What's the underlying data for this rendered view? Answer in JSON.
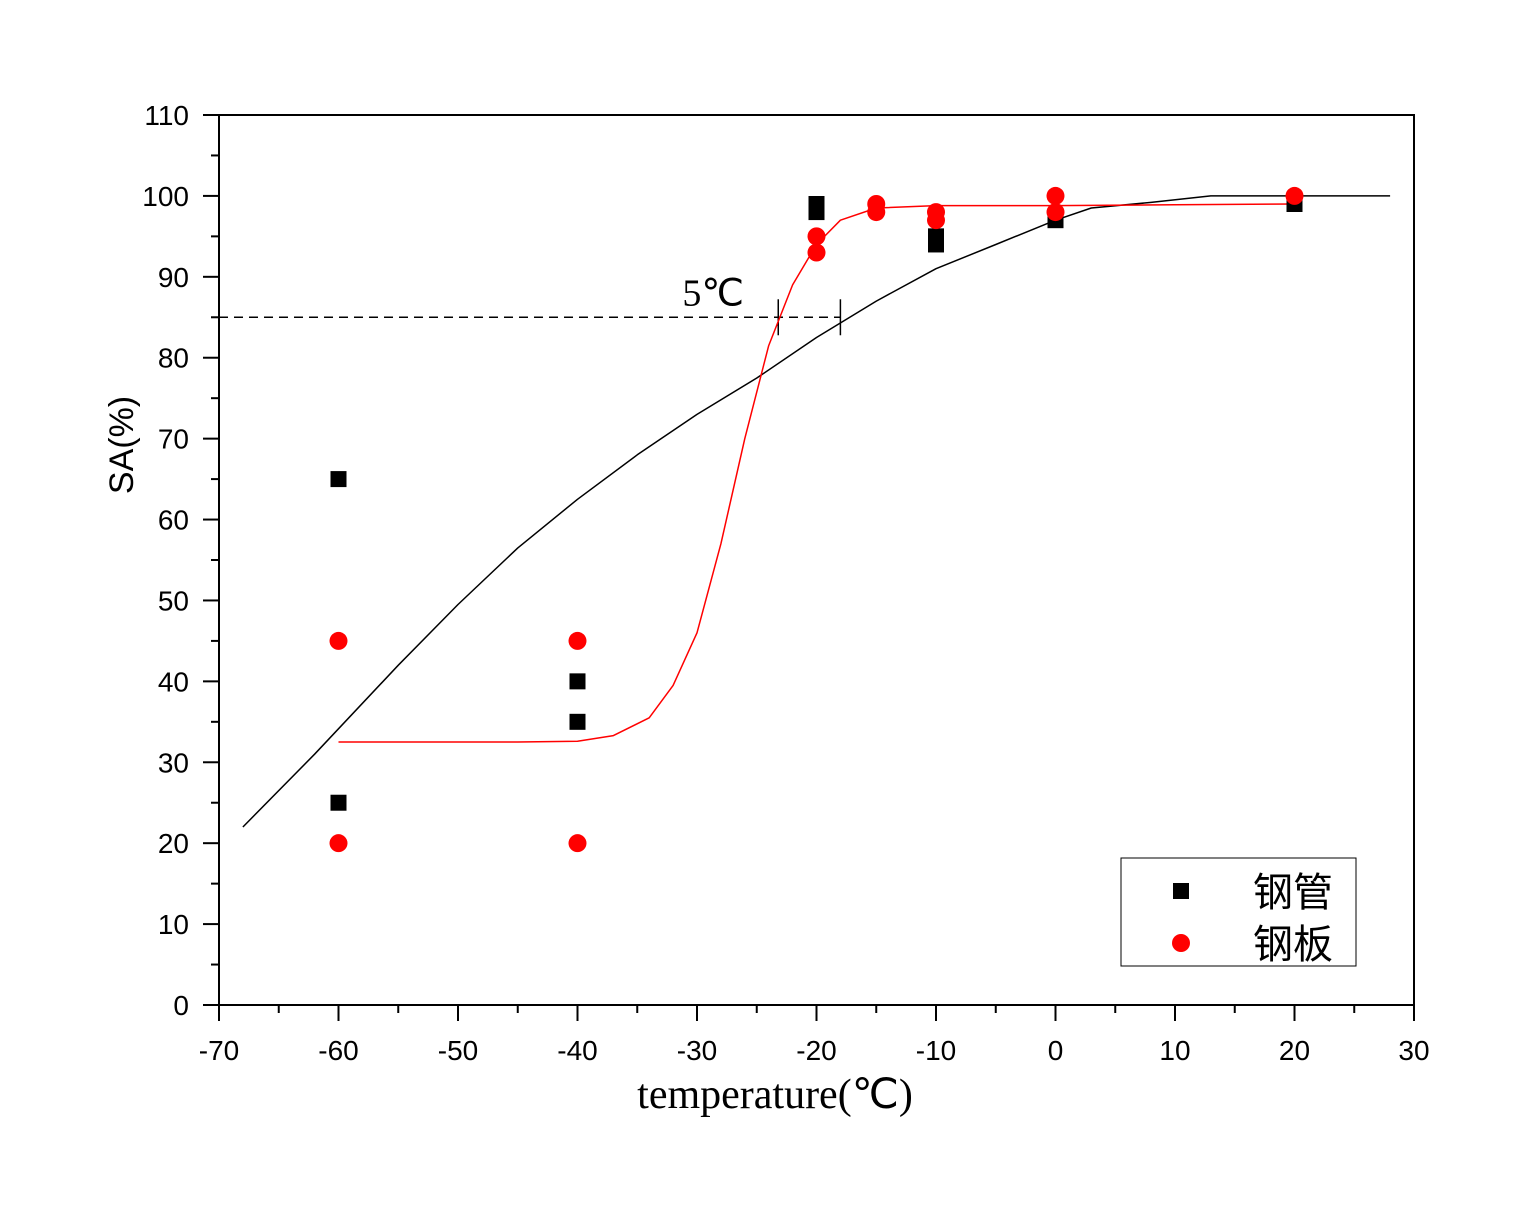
{
  "chart_data": {
    "type": "scatter",
    "xlabel": "temperature(℃)",
    "ylabel": "SA(%)",
    "xlim": [
      -70,
      30
    ],
    "ylim": [
      0,
      110
    ],
    "xticks": [
      -70,
      -60,
      -50,
      -40,
      -30,
      -20,
      -10,
      0,
      10,
      20,
      30
    ],
    "yticks": [
      0,
      10,
      20,
      30,
      40,
      50,
      60,
      70,
      80,
      90,
      100,
      110
    ],
    "grid": false,
    "legend_position": "bottom-right",
    "series": [
      {
        "name": "钢管",
        "marker": "square",
        "color": "#000000",
        "points": [
          [
            -60,
            65
          ],
          [
            -60,
            25
          ],
          [
            -40,
            40
          ],
          [
            -40,
            35
          ],
          [
            -20,
            99
          ],
          [
            -20,
            98
          ],
          [
            -10,
            95
          ],
          [
            -10,
            94
          ],
          [
            0,
            97
          ],
          [
            20,
            99
          ]
        ],
        "fit_curve": [
          [
            -68,
            22
          ],
          [
            -62,
            31
          ],
          [
            -55,
            42
          ],
          [
            -50,
            49.5
          ],
          [
            -45,
            56.5
          ],
          [
            -40,
            62.5
          ],
          [
            -35,
            68
          ],
          [
            -30,
            73
          ],
          [
            -25,
            77.5
          ],
          [
            -20,
            82.5
          ],
          [
            -15,
            87
          ],
          [
            -10,
            91
          ],
          [
            -5,
            94
          ],
          [
            0,
            97
          ],
          [
            3,
            98.5
          ],
          [
            8,
            99.2
          ],
          [
            13,
            100
          ],
          [
            20,
            100
          ],
          [
            28,
            100
          ]
        ]
      },
      {
        "name": "钢板",
        "marker": "circle",
        "color": "#ff0000",
        "points": [
          [
            -60,
            45
          ],
          [
            -60,
            20
          ],
          [
            -40,
            45
          ],
          [
            -40,
            20
          ],
          [
            -20,
            95
          ],
          [
            -20,
            93
          ],
          [
            -15,
            99
          ],
          [
            -15,
            98
          ],
          [
            -10,
            98
          ],
          [
            -10,
            97
          ],
          [
            0,
            100
          ],
          [
            0,
            98
          ],
          [
            20,
            100
          ]
        ],
        "fit_curve": [
          [
            -60,
            32.5
          ],
          [
            -50,
            32.5
          ],
          [
            -45,
            32.5
          ],
          [
            -40,
            32.6
          ],
          [
            -37,
            33.3
          ],
          [
            -34,
            35.5
          ],
          [
            -32,
            39.5
          ],
          [
            -30,
            46
          ],
          [
            -28,
            57
          ],
          [
            -26,
            70
          ],
          [
            -24,
            81.5
          ],
          [
            -22,
            89
          ],
          [
            -20,
            94
          ],
          [
            -18,
            97
          ],
          [
            -15,
            98.5
          ],
          [
            -10,
            98.8
          ],
          [
            0,
            98.8
          ],
          [
            10,
            98.9
          ],
          [
            20,
            99
          ]
        ]
      }
    ],
    "annotations": {
      "delta_label": "5℃",
      "reference_level": 85,
      "marker_x": [
        -23.2,
        -18
      ]
    }
  }
}
